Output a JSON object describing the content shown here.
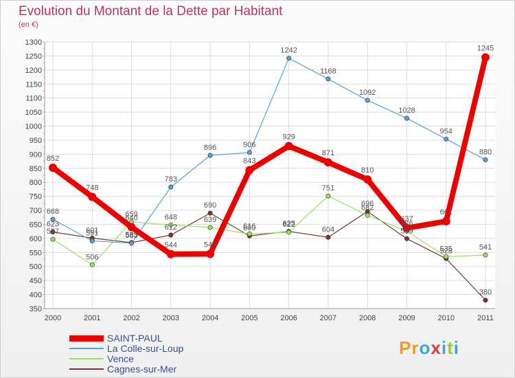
{
  "header": {
    "title": "Evolution du Montant de la Dette par Habitant",
    "subtitle": "(en €)"
  },
  "brand": {
    "text": "Proxiti",
    "colors": [
      "#f59b22",
      "#f59b22",
      "#3aa6de",
      "#e23b3b",
      "#3aa6de",
      "#9acd32",
      "#3aa6de"
    ]
  },
  "chart_data": {
    "type": "line",
    "x": [
      "2000",
      "2001",
      "2002",
      "2003",
      "2004",
      "2005",
      "2006",
      "2007",
      "2008",
      "2009",
      "2010",
      "2011"
    ],
    "ylim": [
      350,
      1300
    ],
    "yticks": [
      350,
      400,
      450,
      500,
      550,
      600,
      650,
      700,
      750,
      800,
      850,
      900,
      950,
      1000,
      1050,
      1100,
      1150,
      1200,
      1250,
      1300
    ],
    "grid": true,
    "legend_position": "bottom-left",
    "series": [
      {
        "name": "SAINT-PAUL",
        "color": "#ee0000",
        "values": [
          852,
          748,
          640,
          544,
          545,
          843,
          929,
          871,
          810,
          637,
          661,
          1245
        ]
      },
      {
        "name": "La Colle-sur-Loup",
        "color": "#5a9fd4",
        "values": [
          668,
          591,
          583,
          783,
          896,
          906,
          1242,
          1168,
          1092,
          1028,
          954,
          880
        ]
      },
      {
        "name": "Vence",
        "color": "#99e05f",
        "values": [
          597,
          506,
          659,
          648,
          639,
          616,
          622,
          751,
          682,
          626,
          535,
          541
        ]
      },
      {
        "name": "Cagnes-sur-Mer",
        "color": "#7a3535",
        "values": [
          623,
          601,
          585,
          612,
          690,
          609,
          625,
          604,
          696,
          599,
          528,
          380
        ]
      }
    ]
  }
}
